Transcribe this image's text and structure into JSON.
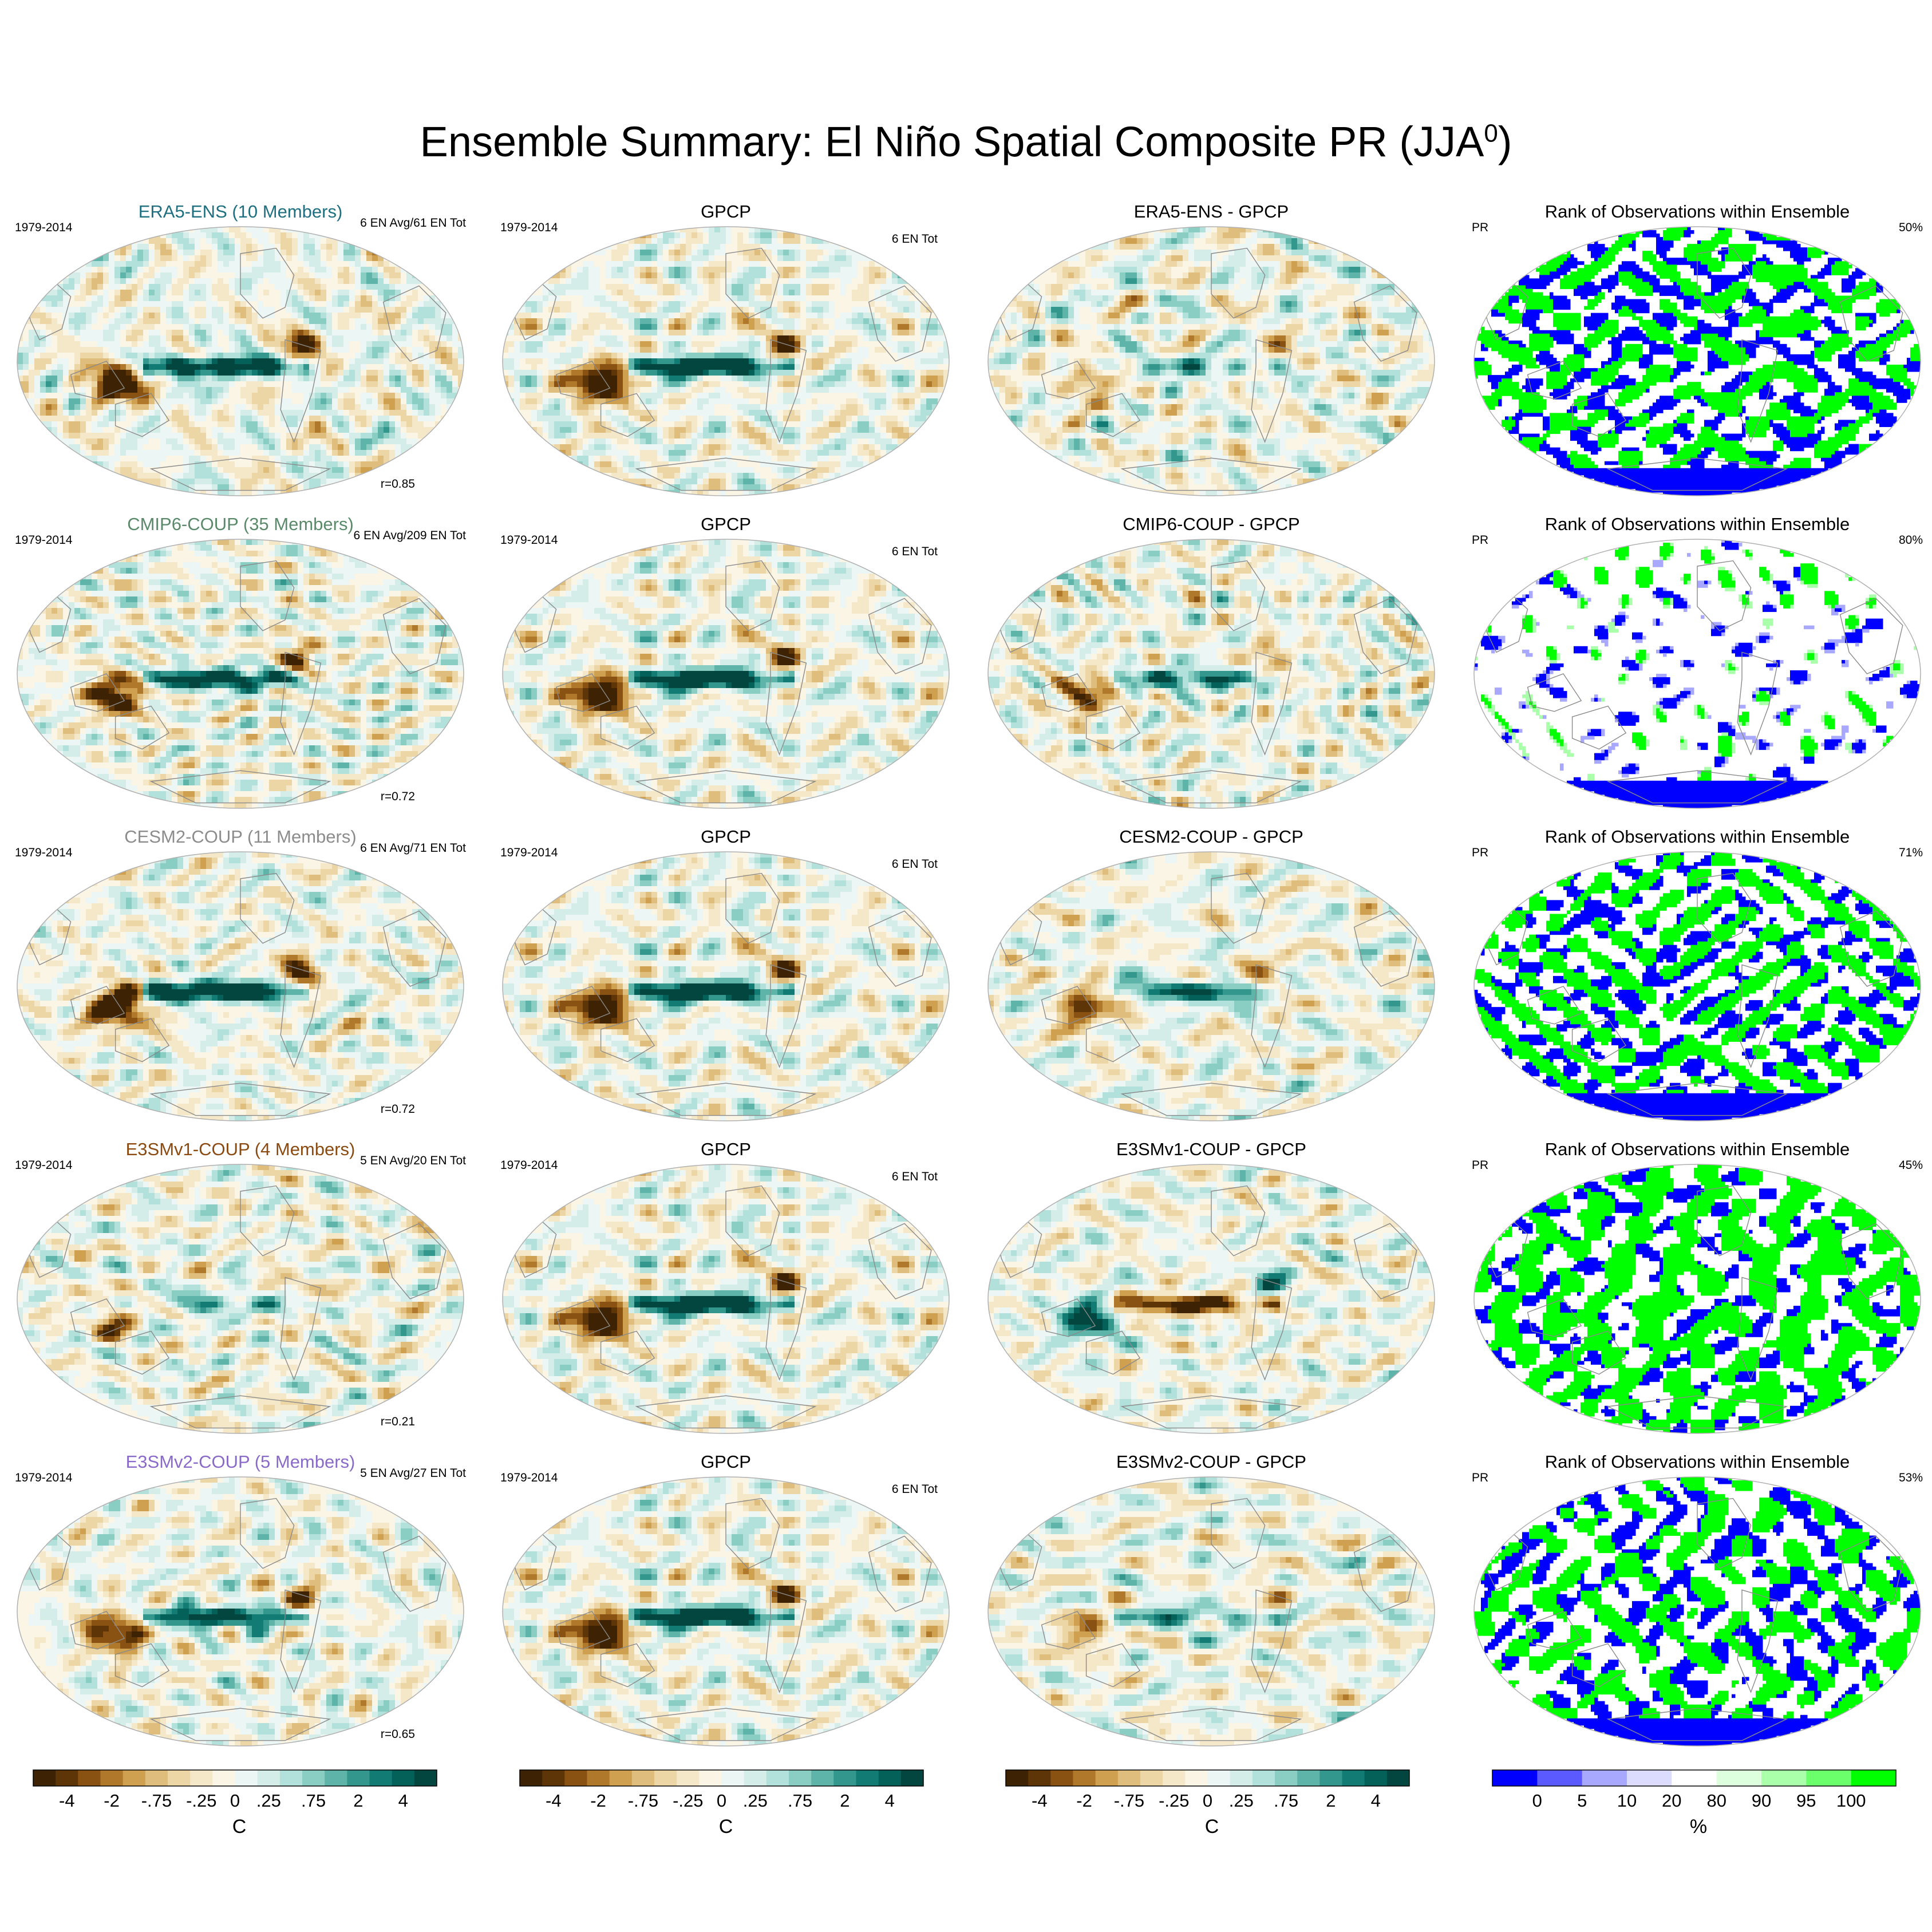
{
  "title": "Ensemble Summary: El Niño Spatial Composite PR (JJA",
  "title_sup": "0",
  "title_close": ")",
  "colors": {
    "diverging": [
      "#3d2304",
      "#5e3506",
      "#8a5212",
      "#b0782a",
      "#cfa050",
      "#dfbd7c",
      "#ecd6a6",
      "#f5e8c9",
      "#fbf5e6",
      "#ecf6f5",
      "#d4ede9",
      "#b2e0da",
      "#8acdc3",
      "#5fb4a9",
      "#33978e",
      "#127b74",
      "#04615a",
      "#02463f"
    ],
    "diverging_bins": [
      0.4,
      0.8,
      0.95
    ],
    "rank": [
      "#0000ff",
      "#5a5aff",
      "#a8a8ff",
      "#dcdcff",
      "#ffffff",
      "#ddffdd",
      "#aaffaa",
      "#6cff6c",
      "#00ff00"
    ],
    "land_outline": "#8a8a8a",
    "map_border": "#b0b0b0"
  },
  "rows": [
    {
      "ensemble": {
        "title": "ERA5-ENS (10 Members)",
        "title_color": "#1e6f80",
        "period": "1979-2014",
        "events": "6 EN Avg/61 EN Tot",
        "corr": "r=0.85",
        "strength": 0.9,
        "seed": 11
      },
      "obs": {
        "title": "GPCP",
        "period": "1979-2014",
        "events": "6 EN Tot"
      },
      "diff": {
        "title": "ERA5-ENS - GPCP",
        "strength": 0.35,
        "seed": 21
      },
      "rank": {
        "title": "Rank of Observations within Ensemble",
        "var": "PR",
        "pct": "50%",
        "mode": "mixed",
        "seed": 31
      }
    },
    {
      "ensemble": {
        "title": "CMIP6-COUP (35 Members)",
        "title_color": "#5a8a6a",
        "period": "1979-2014",
        "events": "6 EN Avg/209 EN Tot",
        "corr": "r=0.72",
        "strength": 0.8,
        "seed": 12
      },
      "obs": {
        "title": "GPCP",
        "period": "1979-2014",
        "events": "6 EN Tot"
      },
      "diff": {
        "title": "CMIP6-COUP - GPCP",
        "strength": 0.55,
        "seed": 22
      },
      "rank": {
        "title": "Rank of Observations within Ensemble",
        "var": "PR",
        "pct": "80%",
        "mode": "mostly-white",
        "seed": 32
      }
    },
    {
      "ensemble": {
        "title": "CESM2-COUP (11 Members)",
        "title_color": "#8c8c8c",
        "period": "1979-2014",
        "events": "6 EN Avg/71 EN Tot",
        "corr": "r=0.72",
        "strength": 1.0,
        "seed": 13
      },
      "obs": {
        "title": "GPCP",
        "period": "1979-2014",
        "events": "6 EN Tot"
      },
      "diff": {
        "title": "CESM2-COUP - GPCP",
        "strength": 0.6,
        "seed": 23
      },
      "rank": {
        "title": "Rank of Observations within Ensemble",
        "var": "PR",
        "pct": "71%",
        "mode": "mixed",
        "seed": 33
      }
    },
    {
      "ensemble": {
        "title": "E3SMv1-COUP (4 Members)",
        "title_color": "#8a4a10",
        "period": "1979-2014",
        "events": "5 EN Avg/20 EN Tot",
        "corr": "r=0.21",
        "strength": 0.35,
        "seed": 14
      },
      "obs": {
        "title": "GPCP",
        "period": "1979-2014",
        "events": "6 EN Tot"
      },
      "diff": {
        "title": "E3SMv1-COUP - GPCP",
        "strength": -0.7,
        "seed": 24
      },
      "rank": {
        "title": "Rank of Observations within Ensemble",
        "var": "PR",
        "pct": "45%",
        "mode": "mostly-colored",
        "seed": 34
      }
    },
    {
      "ensemble": {
        "title": "E3SMv2-COUP (5 Members)",
        "title_color": "#8a6ac8",
        "period": "1979-2014",
        "events": "5 EN Avg/27 EN Tot",
        "corr": "r=0.65",
        "strength": 0.75,
        "seed": 15
      },
      "obs": {
        "title": "GPCP",
        "period": "1979-2014",
        "events": "6 EN Tot"
      },
      "diff": {
        "title": "E3SMv2-COUP - GPCP",
        "strength": 0.4,
        "seed": 25
      },
      "rank": {
        "title": "Rank of Observations within Ensemble",
        "var": "PR",
        "pct": "53%",
        "mode": "mixed",
        "seed": 35
      }
    }
  ],
  "chart_data": {
    "type": "heatmap",
    "description_values": "Composite precipitation anomaly maps, global Robinson-like projection",
    "colorbars": [
      {
        "unit": "C",
        "tick_labels": [
          "-4",
          "-2",
          "-.75",
          "-.25",
          "0",
          ".25",
          ".75",
          "2",
          "4"
        ]
      },
      {
        "unit": "C",
        "tick_labels": [
          "-4",
          "-2",
          "-.75",
          "-.25",
          "0",
          ".25",
          ".75",
          "2",
          "4"
        ]
      },
      {
        "unit": "C",
        "tick_labels": [
          "-4",
          "-2",
          "-.75",
          "-.25",
          "0",
          ".25",
          ".75",
          "2",
          "4"
        ]
      },
      {
        "unit": "%",
        "tick_labels": [
          "0",
          "5",
          "10",
          "20",
          "80",
          "90",
          "95",
          "100"
        ]
      }
    ]
  }
}
